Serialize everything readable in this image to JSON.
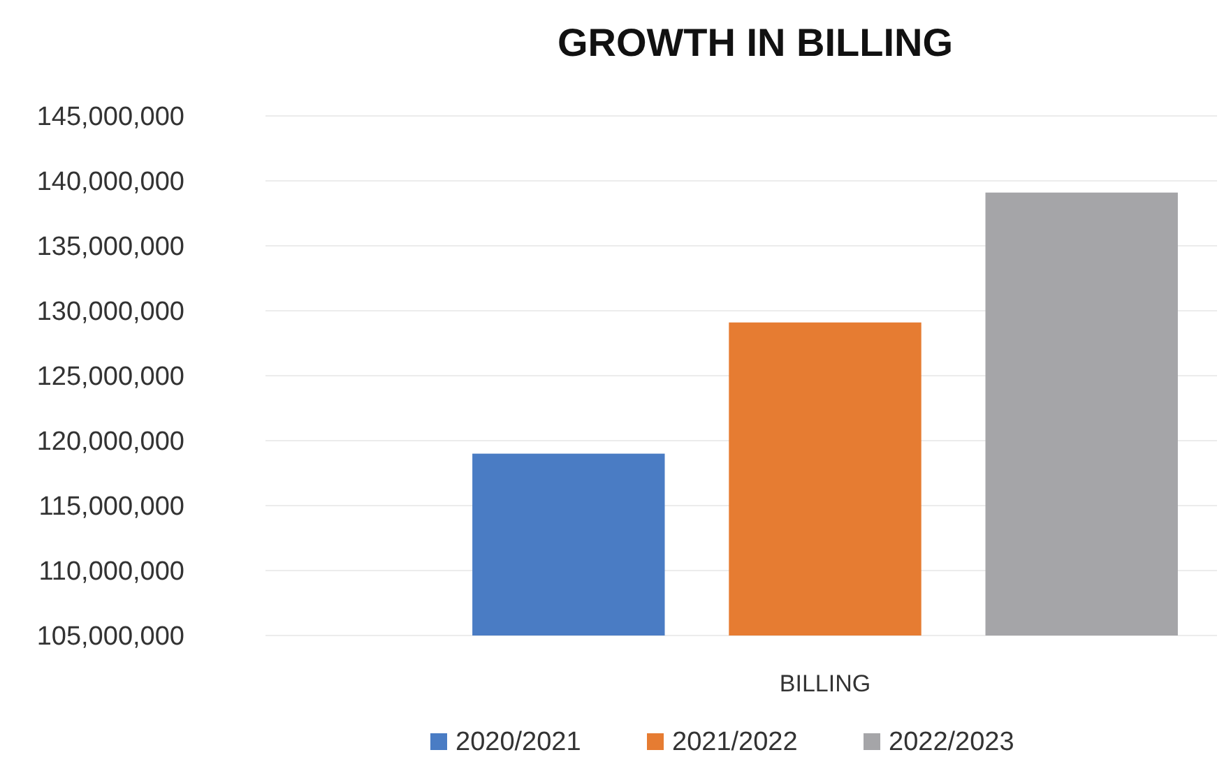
{
  "chart_data": {
    "type": "bar",
    "title": "GROWTH IN BILLING",
    "categories": [
      "BILLING"
    ],
    "series": [
      {
        "name": "2020/2021",
        "color": "#4a7cc4",
        "values": [
          119000000
        ]
      },
      {
        "name": "2021/2022",
        "color": "#e67c32",
        "values": [
          129100000
        ]
      },
      {
        "name": "2022/2023",
        "color": "#a5a5a8",
        "values": [
          139100000
        ]
      }
    ],
    "ylim": [
      105000000,
      145000000
    ],
    "yticks": [
      {
        "value": 105000000,
        "label": "105,000,000"
      },
      {
        "value": 110000000,
        "label": "110,000,000"
      },
      {
        "value": 115000000,
        "label": "115,000,000"
      },
      {
        "value": 120000000,
        "label": "120,000,000"
      },
      {
        "value": 125000000,
        "label": "125,000,000"
      },
      {
        "value": 130000000,
        "label": "130,000,000"
      },
      {
        "value": 135000000,
        "label": "135,000,000"
      },
      {
        "value": 140000000,
        "label": "140,000,000"
      },
      {
        "value": 145000000,
        "label": "145,000,000"
      }
    ],
    "grid": "y",
    "legend": "bottom"
  }
}
